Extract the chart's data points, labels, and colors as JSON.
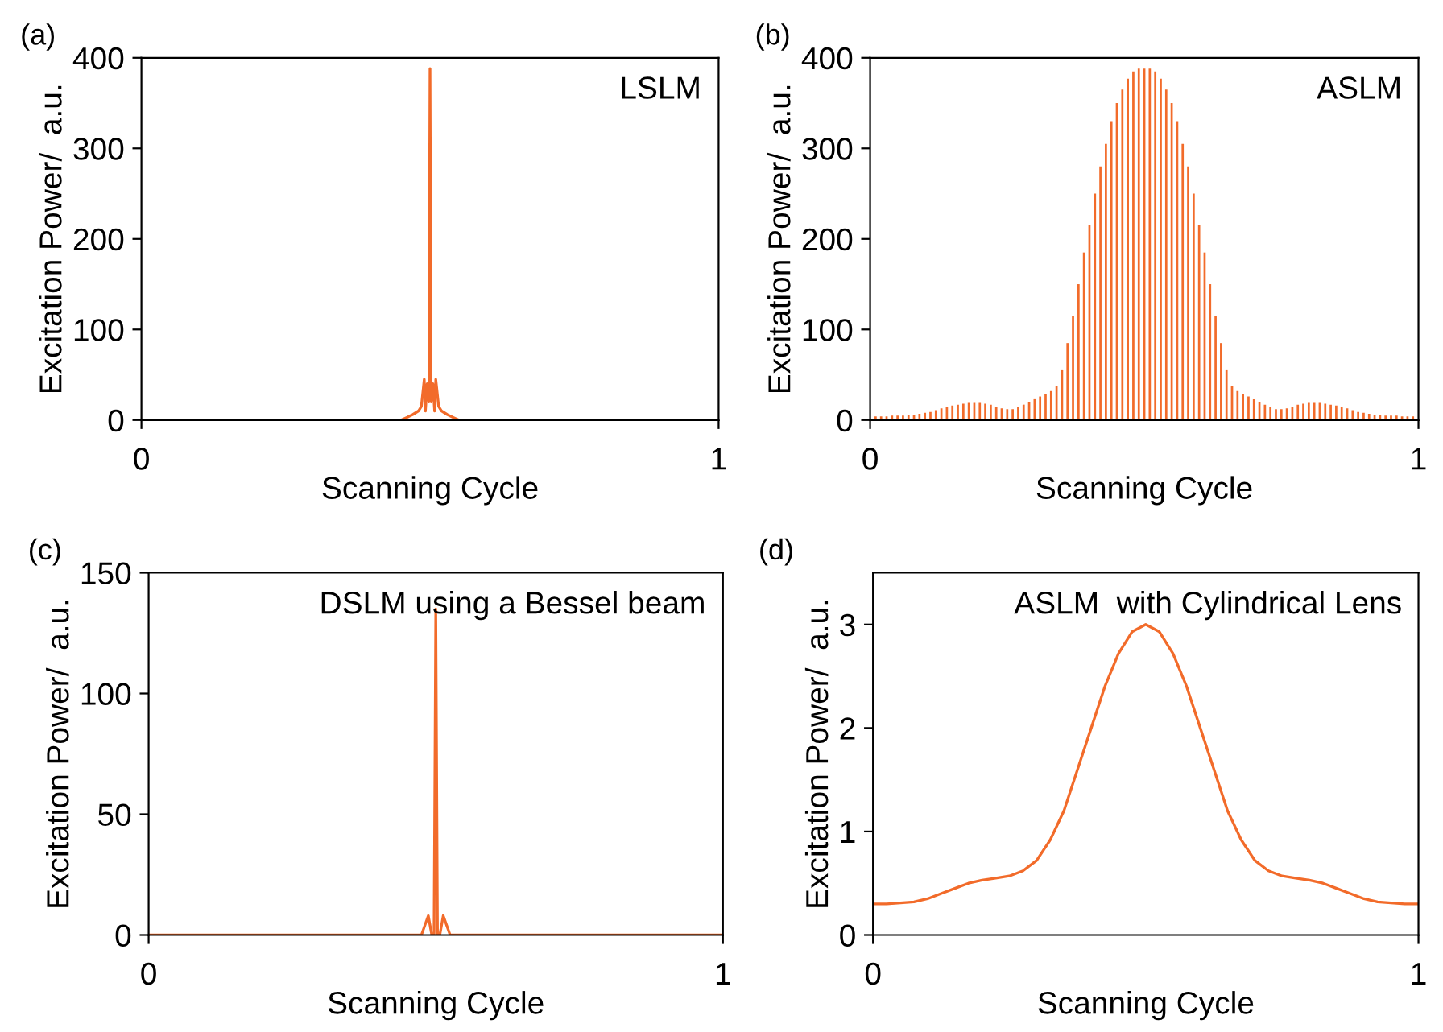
{
  "chart_data": [
    {
      "type": "line",
      "title": "LSLM",
      "annotations": [
        "(a)"
      ],
      "xlabel": "Scanning Cycle",
      "ylabel": "Excitation Power/  a.u.",
      "xlim": [
        0,
        1
      ],
      "xticks": [
        0,
        1
      ],
      "ylim": [
        0,
        400
      ],
      "yticks": [
        0,
        100,
        200,
        300,
        400
      ],
      "grid": false,
      "series": [
        {
          "color": "#f26b2a",
          "x": [
            0,
            0.45,
            0.46,
            0.47,
            0.48,
            0.485,
            0.49,
            0.492,
            0.495,
            0.498,
            0.5,
            0.502,
            0.505,
            0.508,
            0.51,
            0.515,
            0.52,
            0.53,
            0.54,
            0.55,
            1
          ],
          "values": [
            0,
            0,
            3,
            6,
            10,
            15,
            45,
            10,
            40,
            20,
            388,
            20,
            40,
            10,
            45,
            15,
            10,
            6,
            3,
            0,
            0
          ]
        }
      ]
    },
    {
      "type": "bar",
      "title": "ASLM",
      "annotations": [
        "(b)"
      ],
      "xlabel": "Scanning Cycle",
      "ylabel": "Excitation Power/  a.u.",
      "xlim": [
        0,
        1
      ],
      "xticks": [
        0,
        1
      ],
      "ylim": [
        0,
        400
      ],
      "yticks": [
        0,
        100,
        200,
        300,
        400
      ],
      "grid": false,
      "series": [
        {
          "color": "#f26b2a",
          "x": [
            0.01,
            0.02,
            0.03,
            0.04,
            0.05,
            0.06,
            0.07,
            0.08,
            0.09,
            0.1,
            0.11,
            0.12,
            0.13,
            0.14,
            0.15,
            0.16,
            0.17,
            0.18,
            0.19,
            0.2,
            0.21,
            0.22,
            0.23,
            0.24,
            0.25,
            0.26,
            0.27,
            0.28,
            0.29,
            0.3,
            0.31,
            0.32,
            0.33,
            0.34,
            0.35,
            0.36,
            0.37,
            0.38,
            0.39,
            0.4,
            0.41,
            0.42,
            0.43,
            0.44,
            0.45,
            0.46,
            0.47,
            0.48,
            0.49,
            0.5,
            0.51,
            0.52,
            0.53,
            0.54,
            0.55,
            0.56,
            0.57,
            0.58,
            0.59,
            0.6,
            0.61,
            0.62,
            0.63,
            0.64,
            0.65,
            0.66,
            0.67,
            0.68,
            0.69,
            0.7,
            0.71,
            0.72,
            0.73,
            0.74,
            0.75,
            0.76,
            0.77,
            0.78,
            0.79,
            0.8,
            0.81,
            0.82,
            0.83,
            0.84,
            0.85,
            0.86,
            0.87,
            0.88,
            0.89,
            0.9,
            0.91,
            0.92,
            0.93,
            0.94,
            0.95,
            0.96,
            0.97,
            0.98,
            0.99
          ],
          "values": [
            4,
            4,
            4,
            5,
            5,
            5,
            6,
            6,
            7,
            8,
            9,
            11,
            13,
            15,
            16,
            17,
            18,
            19,
            19,
            19,
            18,
            17,
            15,
            13,
            12,
            12,
            14,
            17,
            20,
            23,
            26,
            29,
            32,
            38,
            55,
            85,
            115,
            150,
            185,
            215,
            250,
            280,
            305,
            330,
            350,
            365,
            377,
            385,
            388,
            388,
            388,
            385,
            377,
            365,
            350,
            330,
            305,
            280,
            250,
            215,
            185,
            150,
            115,
            85,
            55,
            38,
            32,
            29,
            26,
            23,
            20,
            17,
            14,
            12,
            12,
            13,
            15,
            17,
            18,
            19,
            19,
            19,
            18,
            17,
            16,
            15,
            13,
            11,
            9,
            8,
            7,
            6,
            6,
            5,
            5,
            5,
            4,
            4,
            4
          ]
        }
      ]
    },
    {
      "type": "line",
      "title": "DSLM using a Bessel beam",
      "annotations": [
        "(c)"
      ],
      "xlabel": "Scanning Cycle",
      "ylabel": "Excitation Power/  a.u.",
      "xlim": [
        0,
        1
      ],
      "xticks": [
        0,
        1
      ],
      "ylim": [
        0,
        150
      ],
      "yticks": [
        0,
        50,
        100,
        150
      ],
      "grid": false,
      "series": [
        {
          "color": "#f26b2a",
          "x": [
            0,
            0.475,
            0.487,
            0.493,
            0.497,
            0.5,
            0.503,
            0.507,
            0.513,
            0.525,
            1
          ],
          "values": [
            0,
            0,
            8,
            0,
            0,
            135,
            0,
            0,
            8,
            0,
            0
          ]
        }
      ]
    },
    {
      "type": "line",
      "title": "ASLM  with Cylindrical Lens",
      "annotations": [
        "(d)"
      ],
      "xlabel": "Scanning Cycle",
      "ylabel": "Excitation Power/  a.u.",
      "xlim": [
        0,
        1
      ],
      "xticks": [
        0,
        1
      ],
      "ylim": [
        0,
        3.5
      ],
      "yticks": [
        0,
        1,
        2,
        3
      ],
      "grid": false,
      "series": [
        {
          "color": "#f26b2a",
          "x": [
            0,
            0.025,
            0.05,
            0.075,
            0.1,
            0.125,
            0.15,
            0.175,
            0.2,
            0.225,
            0.25,
            0.275,
            0.3,
            0.325,
            0.35,
            0.375,
            0.4,
            0.425,
            0.45,
            0.475,
            0.5,
            0.525,
            0.55,
            0.575,
            0.6,
            0.625,
            0.65,
            0.675,
            0.7,
            0.725,
            0.75,
            0.775,
            0.8,
            0.825,
            0.85,
            0.875,
            0.9,
            0.925,
            0.95,
            0.975,
            1
          ],
          "values": [
            0.3,
            0.3,
            0.31,
            0.32,
            0.35,
            0.4,
            0.45,
            0.5,
            0.53,
            0.55,
            0.57,
            0.62,
            0.72,
            0.92,
            1.2,
            1.6,
            2.0,
            2.4,
            2.72,
            2.93,
            3.0,
            2.93,
            2.72,
            2.4,
            2.0,
            1.6,
            1.2,
            0.92,
            0.72,
            0.62,
            0.57,
            0.55,
            0.53,
            0.5,
            0.45,
            0.4,
            0.35,
            0.32,
            0.31,
            0.3,
            0.3
          ]
        }
      ]
    }
  ]
}
